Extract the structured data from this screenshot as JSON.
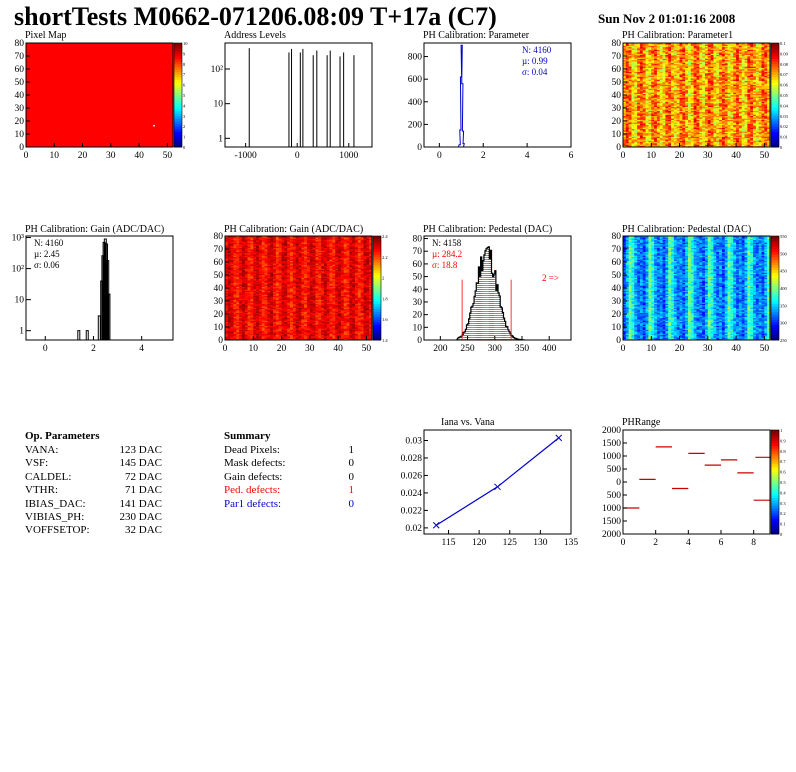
{
  "header": {
    "title": "shortTests M0662-071206.08:09 T+17a (C7)",
    "date": "Sun Nov  2 01:01:16 2008"
  },
  "colors": {
    "red": "#ff0000",
    "blue": "#0000cc",
    "darkred": "#8b0000"
  },
  "chart_data": [
    {
      "id": "pixel-map",
      "type": "heatmap",
      "title": "Pixel Map",
      "x_ticks": [
        "0",
        "10",
        "20",
        "30",
        "40",
        "50"
      ],
      "y_ticks": [
        "0",
        "10",
        "20",
        "30",
        "40",
        "50",
        "60",
        "70",
        "80"
      ],
      "xlim": [
        0,
        52
      ],
      "ylim": [
        0,
        80
      ],
      "uniform_value": 10,
      "colorbar_ticks": [
        "10",
        "9",
        "8",
        "7",
        "6",
        "5",
        "4",
        "3",
        "2",
        "1",
        "0"
      ],
      "markers": [
        {
          "x": 45,
          "y": 17
        }
      ]
    },
    {
      "id": "address-levels",
      "type": "bar",
      "title": "Address Levels",
      "yscale": "log",
      "x_ticks": [
        "-1000",
        "0",
        "1000"
      ],
      "y_ticks": [
        "1",
        "10",
        "10^2"
      ],
      "xlim": [
        -1400,
        1450
      ],
      "spikes": [
        {
          "x": -930,
          "h": 400
        },
        {
          "x": -160,
          "h": 300
        },
        {
          "x": -110,
          "h": 380
        },
        {
          "x": 60,
          "h": 300
        },
        {
          "x": 110,
          "h": 380
        },
        {
          "x": 310,
          "h": 250
        },
        {
          "x": 380,
          "h": 340
        },
        {
          "x": 580,
          "h": 250
        },
        {
          "x": 640,
          "h": 340
        },
        {
          "x": 830,
          "h": 230
        },
        {
          "x": 900,
          "h": 300
        },
        {
          "x": 1100,
          "h": 250
        }
      ]
    },
    {
      "id": "ph-cal-parameter",
      "type": "bar",
      "title": "PH Calibration: Parameter",
      "x_ticks": [
        "0",
        "2",
        "4",
        "6"
      ],
      "y_ticks": [
        "0",
        "200",
        "400",
        "600",
        "800"
      ],
      "xlim": [
        -0.7,
        6
      ],
      "ylim": [
        0,
        920
      ],
      "stats": {
        "n": "N: 4160",
        "mean": "µ: 0.99",
        "sigma": "σ: 0.04"
      },
      "bins": [
        {
          "x": 0.9,
          "v": 20
        },
        {
          "x": 0.93,
          "v": 150
        },
        {
          "x": 0.96,
          "v": 620
        },
        {
          "x": 0.99,
          "v": 900
        },
        {
          "x": 1.02,
          "v": 560
        },
        {
          "x": 1.05,
          "v": 140
        },
        {
          "x": 1.08,
          "v": 30
        }
      ]
    },
    {
      "id": "ph-cal-parameter1",
      "type": "heatmap",
      "title": "PH Calibration: Parameter1",
      "x_ticks": [
        "0",
        "10",
        "20",
        "30",
        "40",
        "50"
      ],
      "y_ticks": [
        "0",
        "10",
        "20",
        "30",
        "40",
        "50",
        "60",
        "70",
        "80"
      ],
      "xlim": [
        0,
        52
      ],
      "ylim": [
        0,
        80
      ],
      "colorbar_ticks": [
        "0.1",
        "0.09",
        "0.08",
        "0.07",
        "0.06",
        "0.05",
        "0.04",
        "0.03",
        "0.02",
        "0.01",
        "0"
      ]
    },
    {
      "id": "ph-cal-gain-hist",
      "type": "bar",
      "title": "PH Calibration: Gain (ADC/DAC)",
      "yscale": "log",
      "x_ticks": [
        "0",
        "2",
        "4"
      ],
      "y_ticks": [
        "1",
        "10",
        "10^2",
        "10^3"
      ],
      "xlim": [
        -0.8,
        5.3
      ],
      "stats": {
        "n": "N: 4160",
        "mean": "µ: 2.45",
        "sigma": "σ: 0.06"
      },
      "bins": [
        {
          "x": 1.35,
          "v": 1
        },
        {
          "x": 1.7,
          "v": 1
        },
        {
          "x": 2.2,
          "v": 3
        },
        {
          "x": 2.3,
          "v": 40
        },
        {
          "x": 2.35,
          "v": 260
        },
        {
          "x": 2.4,
          "v": 700
        },
        {
          "x": 2.45,
          "v": 900
        },
        {
          "x": 2.5,
          "v": 620
        },
        {
          "x": 2.55,
          "v": 180
        },
        {
          "x": 2.6,
          "v": 15
        }
      ]
    },
    {
      "id": "ph-cal-gain-map",
      "type": "heatmap",
      "title": "PH Calibration: Gain (ADC/DAC)",
      "x_ticks": [
        "0",
        "10",
        "20",
        "30",
        "40",
        "50"
      ],
      "y_ticks": [
        "0",
        "10",
        "20",
        "30",
        "40",
        "50",
        "60",
        "70",
        "80"
      ],
      "xlim": [
        0,
        52
      ],
      "ylim": [
        0,
        80
      ],
      "colorbar_ticks": [
        "2.4",
        "2.2",
        "2",
        "1.8",
        "1.6",
        "1.4"
      ]
    },
    {
      "id": "ph-cal-pedestal-hist",
      "type": "bar",
      "title": "PH Calibration: Pedestal (DAC)",
      "x_ticks": [
        "200",
        "250",
        "300",
        "350",
        "400"
      ],
      "y_ticks": [
        "0",
        "10",
        "20",
        "30",
        "40",
        "50",
        "60",
        "70",
        "80"
      ],
      "xlim": [
        170,
        440
      ],
      "ylim": [
        0,
        82
      ],
      "stats": {
        "n": "N: 4158",
        "mean": "µ: 284.2",
        "sigma": "σ: 18.8"
      },
      "annotation": "2 =>",
      "cut_lines": [
        240,
        330
      ]
    },
    {
      "id": "ph-cal-pedestal-map",
      "type": "heatmap",
      "title": "PH Calibration: Pedestal (DAC)",
      "x_ticks": [
        "0",
        "10",
        "20",
        "30",
        "40",
        "50"
      ],
      "y_ticks": [
        "0",
        "10",
        "20",
        "30",
        "40",
        "50",
        "60",
        "70",
        "80"
      ],
      "xlim": [
        0,
        52
      ],
      "ylim": [
        0,
        80
      ],
      "colorbar_ticks": [
        "550",
        "500",
        "450",
        "400",
        "350",
        "300",
        "250"
      ]
    },
    {
      "id": "iana-vs-vana",
      "type": "line",
      "title": "Iana vs. Vana",
      "x_ticks": [
        "115",
        "120",
        "125",
        "130",
        "135"
      ],
      "y_ticks": [
        "0.02",
        "0.022",
        "0.024",
        "0.026",
        "0.028",
        "0.03"
      ],
      "xlim": [
        111,
        135
      ],
      "ylim": [
        0.0193,
        0.0312
      ],
      "x": [
        113,
        123,
        133
      ],
      "y": [
        0.0203,
        0.0247,
        0.0303
      ]
    },
    {
      "id": "ph-range",
      "type": "heatmap",
      "title": "PHRange",
      "x_ticks": [
        "0",
        "2",
        "4",
        "6",
        "8"
      ],
      "y_ticks": [
        "-2000",
        "-1500",
        "-1000",
        "-500",
        "0",
        "500",
        "1000",
        "1500",
        "2000"
      ],
      "y_tick_text": [
        "2000",
        "1500",
        "1000",
        "500",
        "0",
        "500",
        "1000",
        "1500",
        "2000"
      ],
      "xlim": [
        0,
        9
      ],
      "ylim": [
        -2000,
        2000
      ],
      "colorbar_ticks": [
        "1",
        "0.9",
        "0.8",
        "0.7",
        "0.6",
        "0.5",
        "0.4",
        "0.3",
        "0.2",
        "0.1",
        "0"
      ],
      "segments": [
        {
          "x": 0,
          "y": -1000
        },
        {
          "x": 1,
          "y": 100
        },
        {
          "x": 2,
          "y": 1350
        },
        {
          "x": 3,
          "y": -250
        },
        {
          "x": 4,
          "y": 1100
        },
        {
          "x": 5,
          "y": 650
        },
        {
          "x": 6,
          "y": 850
        },
        {
          "x": 7,
          "y": 350
        },
        {
          "x": 8,
          "y": -700
        },
        {
          "x": 8.1,
          "y": 950
        }
      ]
    }
  ],
  "op_params": {
    "title": "Op. Parameters",
    "rows": [
      {
        "k": "VANA:",
        "v": "123 DAC"
      },
      {
        "k": "VSF:",
        "v": "145 DAC"
      },
      {
        "k": "CALDEL:",
        "v": "72 DAC"
      },
      {
        "k": "VTHR:",
        "v": "71 DAC"
      },
      {
        "k": "IBIAS_DAC:",
        "v": "141 DAC"
      },
      {
        "k": "VIBIAS_PH:",
        "v": "230 DAC"
      },
      {
        "k": "VOFFSETOP:",
        "v": "32 DAC"
      }
    ]
  },
  "summary": {
    "title": "Summary",
    "rows": [
      {
        "k": "Dead Pixels:",
        "v": "1",
        "color": "#000000"
      },
      {
        "k": "Mask defects:",
        "v": "0",
        "color": "#000000"
      },
      {
        "k": "Gain defects:",
        "v": "0",
        "color": "#000000"
      },
      {
        "k": "Ped. defects:",
        "v": "1",
        "color": "#ff0000"
      },
      {
        "k": "Par1 defects:",
        "v": "0",
        "color": "#0000cc"
      }
    ]
  }
}
